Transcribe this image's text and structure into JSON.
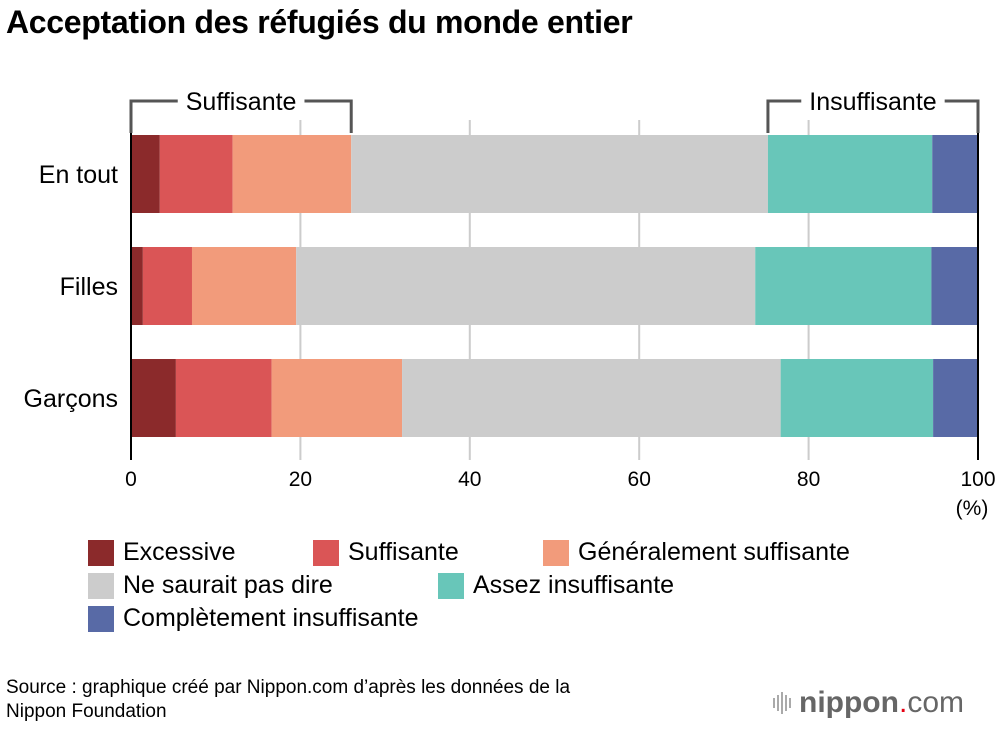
{
  "title": "Acceptation des réfugiés du monde entier",
  "chart_data": {
    "type": "bar",
    "orientation": "horizontal",
    "stacked": true,
    "title": "Acceptation des réfugiés du monde entier",
    "categories": [
      "En tout",
      "Filles",
      "Garçons"
    ],
    "series": [
      {
        "name": "Excessive",
        "color": "#8b2a2b",
        "values": [
          3.4,
          1.4,
          5.3
        ]
      },
      {
        "name": "Suffisante",
        "color": "#da5556",
        "values": [
          8.6,
          5.8,
          11.3
        ]
      },
      {
        "name": "Généralement suffisante",
        "color": "#f29b7b",
        "values": [
          14.0,
          12.3,
          15.4
        ]
      },
      {
        "name": "Ne saurait pas dire",
        "color": "#cccccc",
        "values": [
          49.2,
          54.2,
          44.7
        ]
      },
      {
        "name": "Assez insuffisante",
        "color": "#68c6b9",
        "values": [
          19.4,
          20.8,
          18.0
        ]
      },
      {
        "name": "Complètement insuffisante",
        "color": "#586aa6",
        "values": [
          5.4,
          5.5,
          5.3
        ]
      }
    ],
    "xlim": [
      0,
      100
    ],
    "xticks": [
      0,
      20,
      40,
      60,
      80,
      100
    ],
    "xtick_labels": [
      "0",
      "20",
      "40",
      "60",
      "80",
      "100"
    ],
    "xunit": "(%)",
    "grid": true,
    "annotations": [
      {
        "label": "Suffisante",
        "from": 0,
        "to": 26.0
      },
      {
        "label": "Insuffisante",
        "from": 75.2,
        "to": 100
      }
    ],
    "legend_position": "bottom"
  },
  "source": [
    "Source : graphique créé par Nippon.com d’après les données de la",
    "Nippon Foundation"
  ],
  "logo": {
    "name": "nippon",
    "dot": ".",
    "suffix": "com"
  }
}
